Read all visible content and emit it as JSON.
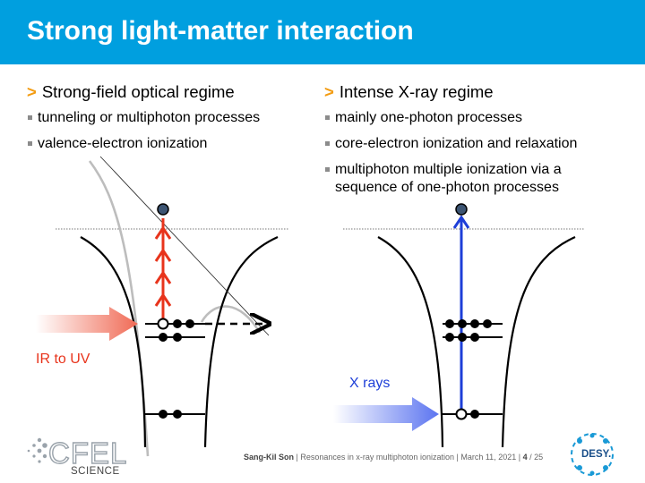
{
  "header": {
    "title": "Strong light-matter interaction"
  },
  "left": {
    "heading": "Strong-field optical regime",
    "bullets": [
      "tunneling or multiphoton processes",
      "valence-electron ionization"
    ],
    "beam_label": "IR to UV"
  },
  "right": {
    "heading": "Intense X-ray regime",
    "bullets": [
      "mainly one-photon processes",
      "core-electron ionization and relaxation",
      "multiphoton multiple ionization via a sequence of one-photon processes"
    ],
    "beam_label": "X rays"
  },
  "footer": {
    "author": "Sang-Kil Son",
    "talk": "Resonances in x-ray multiphoton ionization",
    "date": "March 11, 2021",
    "page": "4",
    "total": "/ 25"
  },
  "logos": {
    "left_text": "CFEL",
    "left_sub": "SCIENCE",
    "right_text": "DESY."
  },
  "colors": {
    "accent": "#009FDF",
    "bullet_marker": "#F39C12",
    "ir_arrow": "#E8341C",
    "xray_arrow": "#1E3FD8"
  }
}
